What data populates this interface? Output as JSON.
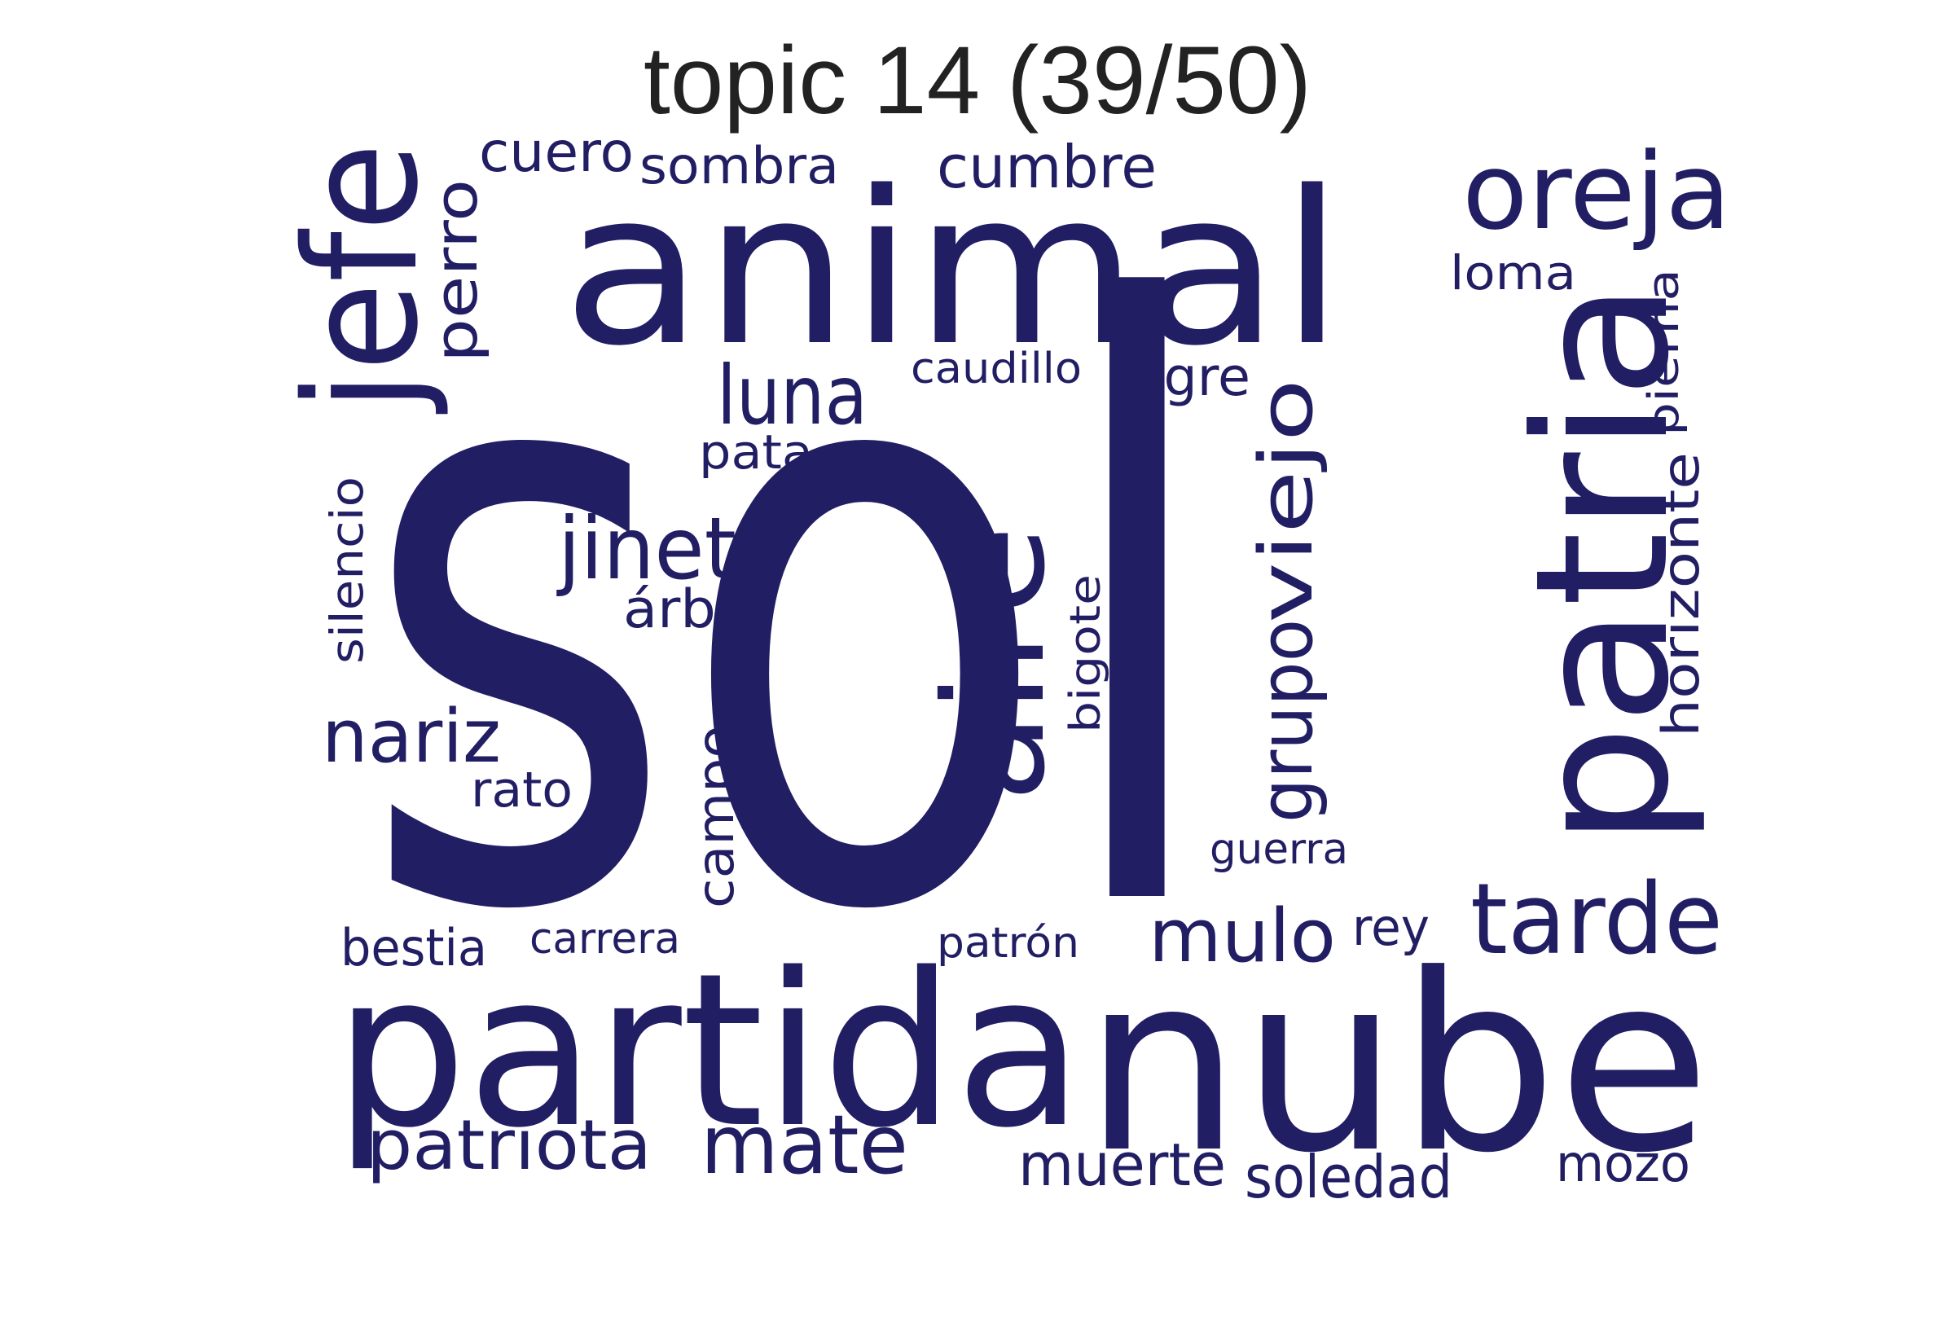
{
  "title": "topic 14 (39/50)",
  "colors": {
    "word": "#221e64",
    "title": "#222222",
    "background": "#ffffff"
  },
  "words": {
    "sol": "sol",
    "animal": "animal",
    "partida": "partida",
    "nube": "nube",
    "patria": "patria",
    "jefe": "jefe",
    "aire": "aire",
    "oreja": "oreja",
    "tarde": "tarde",
    "luna": "luna",
    "jinete": "jinete",
    "viejo": "viejo",
    "grupo": "grupo",
    "mate": "mate",
    "patriota": "patriota",
    "mulo": "mulo",
    "nariz": "nariz",
    "perro": "perro",
    "cumbre": "cumbre",
    "sombra": "sombra",
    "cuero": "cuero",
    "loma": "loma",
    "caudillo": "caudillo",
    "tigre": "tigre",
    "pata": "pata",
    "arbol": "árbol",
    "silencio": "silencio",
    "bigote": "bigote",
    "horizonte": "horizonte",
    "pierna": "pierna",
    "campo": "campo",
    "rato": "rato",
    "guerra": "guerra",
    "rey": "rey",
    "bestia": "bestia",
    "carrera": "carrera",
    "patron": "patrón",
    "muerte": "muerte",
    "soledad": "soledad",
    "mozo": "mozo"
  }
}
